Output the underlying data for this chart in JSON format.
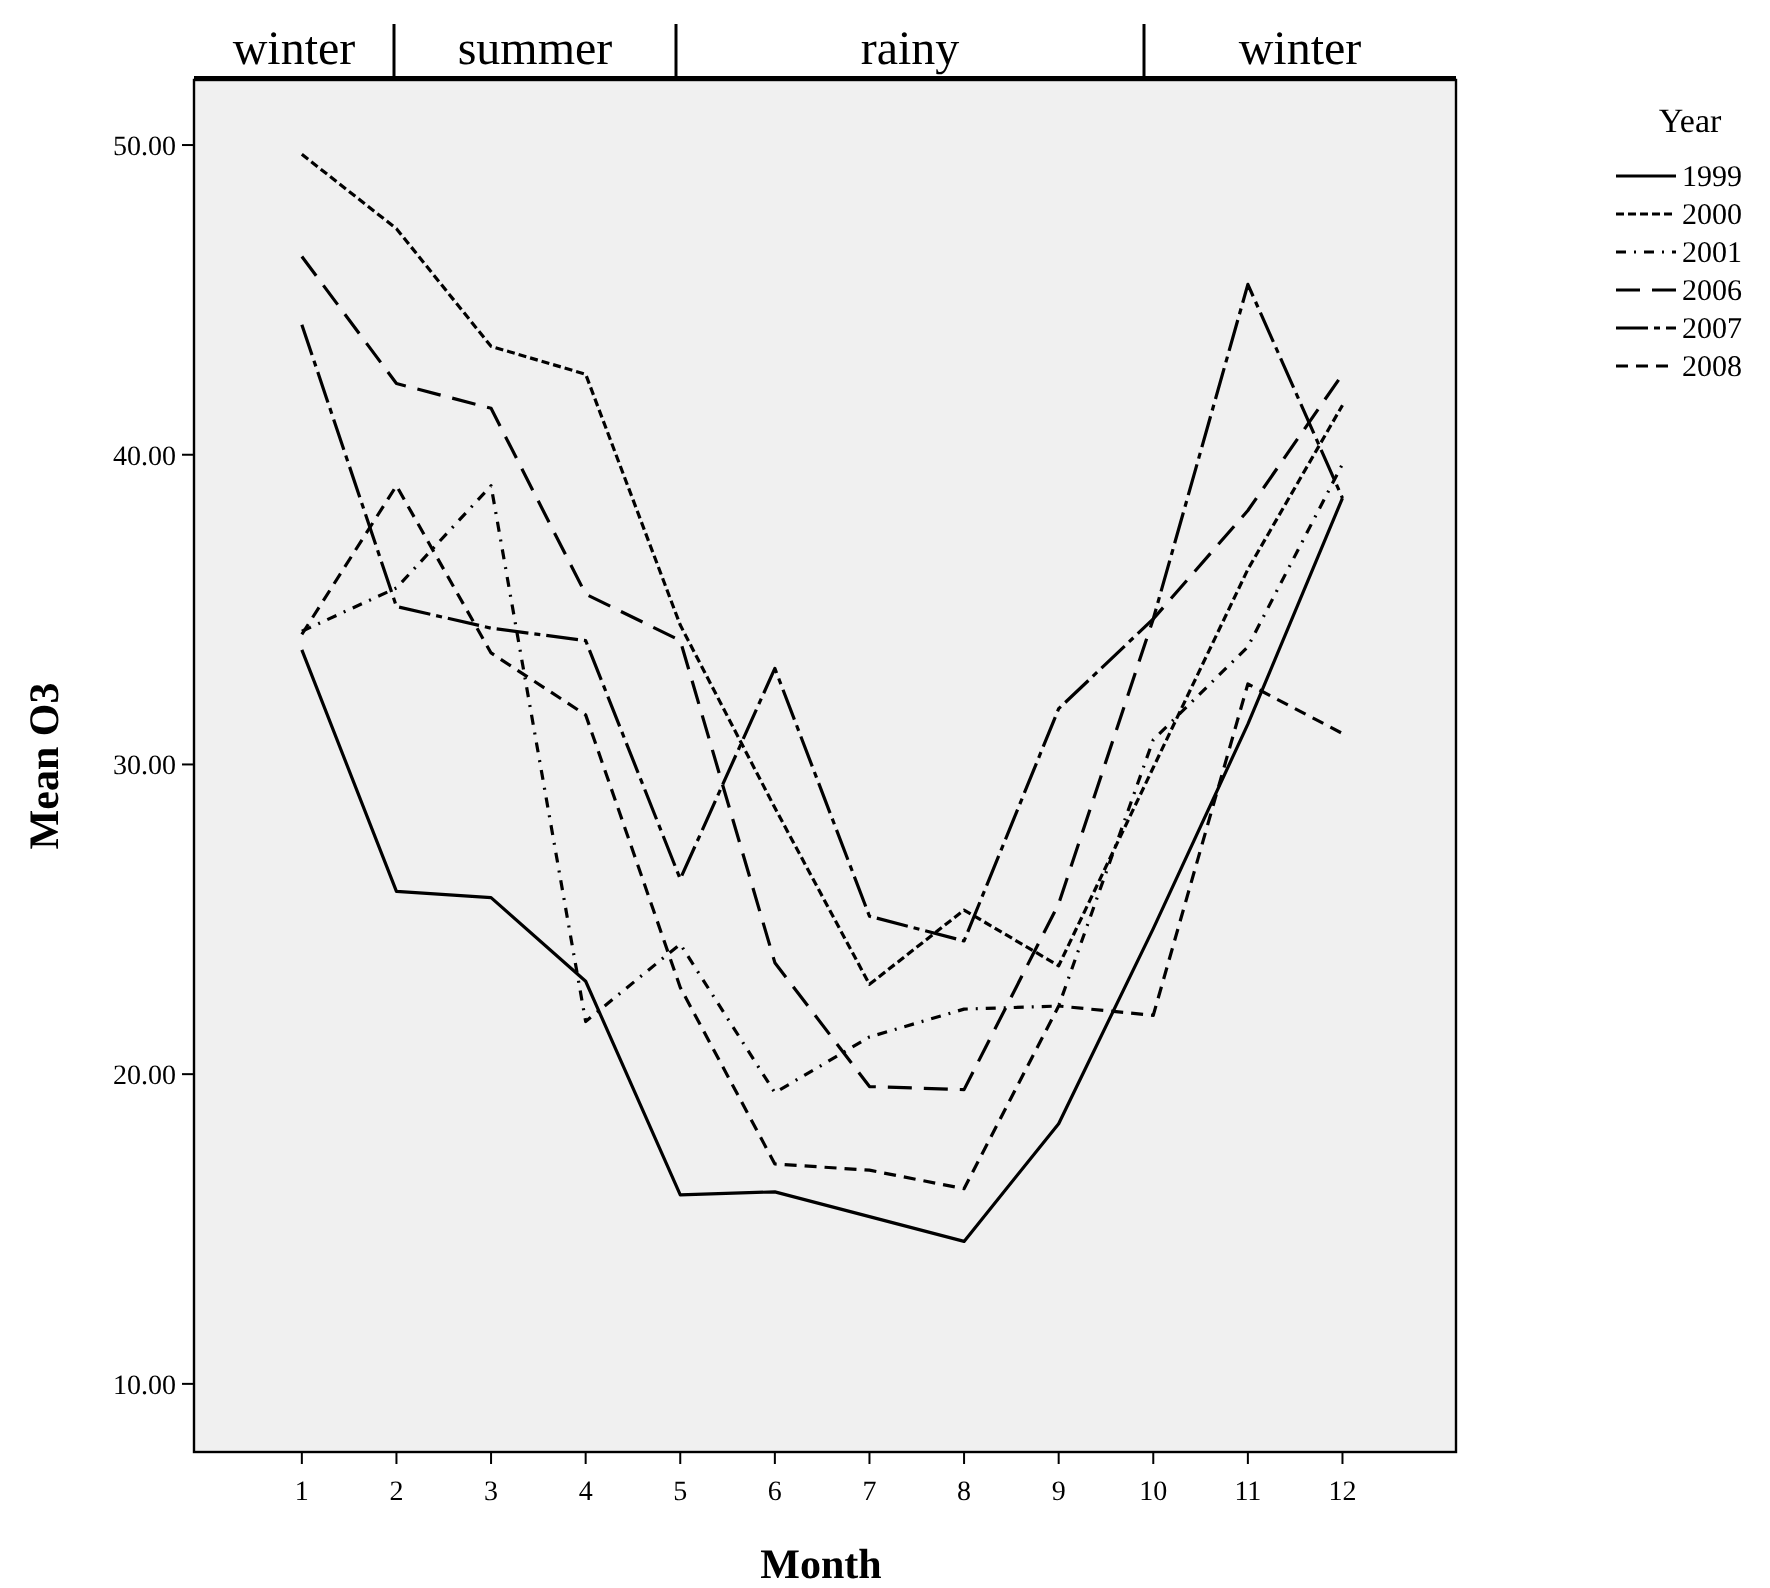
{
  "chart_data": {
    "type": "line",
    "xlabel": "Month",
    "ylabel": "Mean O3",
    "legend_title": "Year",
    "legend": "right",
    "grid": false,
    "annotations": [
      "winter",
      "summer",
      "rainy",
      "winter"
    ],
    "x": [
      1,
      2,
      3,
      4,
      5,
      6,
      7,
      8,
      9,
      10,
      11,
      12
    ],
    "xlim": [
      -0.14,
      13.2
    ],
    "xticks": [
      1,
      2,
      3,
      4,
      5,
      6,
      7,
      8,
      9,
      10,
      11,
      12
    ],
    "ylim": [
      7.8,
      52.1
    ],
    "yticks": [
      {
        "value": 10,
        "label": "10.00"
      },
      {
        "value": 20,
        "label": "20.00"
      },
      {
        "value": 30,
        "label": "30.00"
      },
      {
        "value": 40,
        "label": "40.00"
      },
      {
        "value": 50,
        "label": "50.00"
      }
    ],
    "series": [
      {
        "name": "1999",
        "color": "#000000",
        "line_style": "solid",
        "values": [
          33.7,
          25.9,
          25.7,
          23.0,
          16.1,
          16.2,
          15.4,
          14.6,
          18.4,
          24.7,
          31.3,
          38.6
        ]
      },
      {
        "name": "2000",
        "color": "#000000",
        "line_style": "dashed",
        "values": [
          49.7,
          47.3,
          43.5,
          42.6,
          34.5,
          28.6,
          22.9,
          25.3,
          23.5,
          29.9,
          36.3,
          41.6
        ]
      },
      {
        "name": "2001",
        "color": "#000000",
        "line_style": "dashed",
        "values": [
          34.3,
          35.7,
          39.0,
          21.7,
          24.2,
          19.4,
          21.2,
          22.1,
          22.2,
          30.8,
          33.8,
          39.7
        ]
      },
      {
        "name": "2006",
        "color": "#000000",
        "line_style": "dashed",
        "values": [
          46.4,
          42.3,
          41.5,
          35.5,
          34.0,
          23.6,
          19.6,
          19.5,
          25.5,
          34.7,
          38.2,
          42.6
        ]
      },
      {
        "name": "2007",
        "color": "#000000",
        "line_style": "dashed",
        "values": [
          44.2,
          35.1,
          34.4,
          34.0,
          26.3,
          33.1,
          25.1,
          24.3,
          31.8,
          34.7,
          45.5,
          38.6
        ]
      },
      {
        "name": "2008",
        "color": "#000000",
        "line_style": "dashed",
        "values": [
          34.2,
          39.0,
          33.6,
          31.6,
          22.8,
          17.1,
          16.9,
          16.3,
          22.2,
          21.9,
          32.6,
          31.0
        ]
      }
    ]
  }
}
